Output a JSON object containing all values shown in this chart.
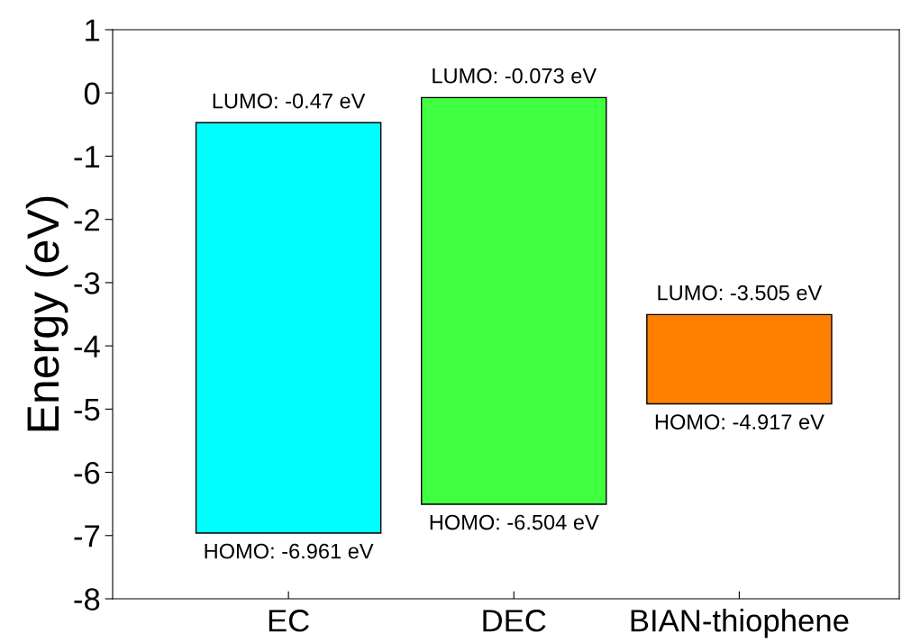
{
  "chart_data": {
    "type": "bar",
    "ylabel": "Energy (eV)",
    "categories": [
      "EC",
      "DEC",
      "BIAN-thiophene"
    ],
    "base": [
      -6.961,
      -6.504,
      -4.917
    ],
    "values": [
      6.491,
      6.431,
      1.412
    ],
    "colors": [
      "#00ffff",
      "#40ff40",
      "#ff8000"
    ],
    "ylim": [
      -8,
      1
    ],
    "yticks": [
      -8,
      -7,
      -6,
      -5,
      -4,
      -3,
      -2,
      -1,
      0,
      1
    ],
    "grid": false,
    "legend": false,
    "annotations": [
      {
        "text": "LUMO: -0.47 eV",
        "x": "EC",
        "y": -0.47
      },
      {
        "text": "HOMO: -6.961 eV",
        "x": "EC",
        "y": -6.961
      },
      {
        "text": "LUMO: -0.073 eV",
        "x": "DEC",
        "y": -0.073
      },
      {
        "text": "HOMO: -6.504 eV",
        "x": "DEC",
        "y": -6.504
      },
      {
        "text": "LUMO: -3.505 eV",
        "x": "BIAN-thiophene",
        "y": -3.505
      },
      {
        "text": "HOMO: -4.917 eV",
        "x": "BIAN-thiophene",
        "y": -4.917
      }
    ]
  }
}
